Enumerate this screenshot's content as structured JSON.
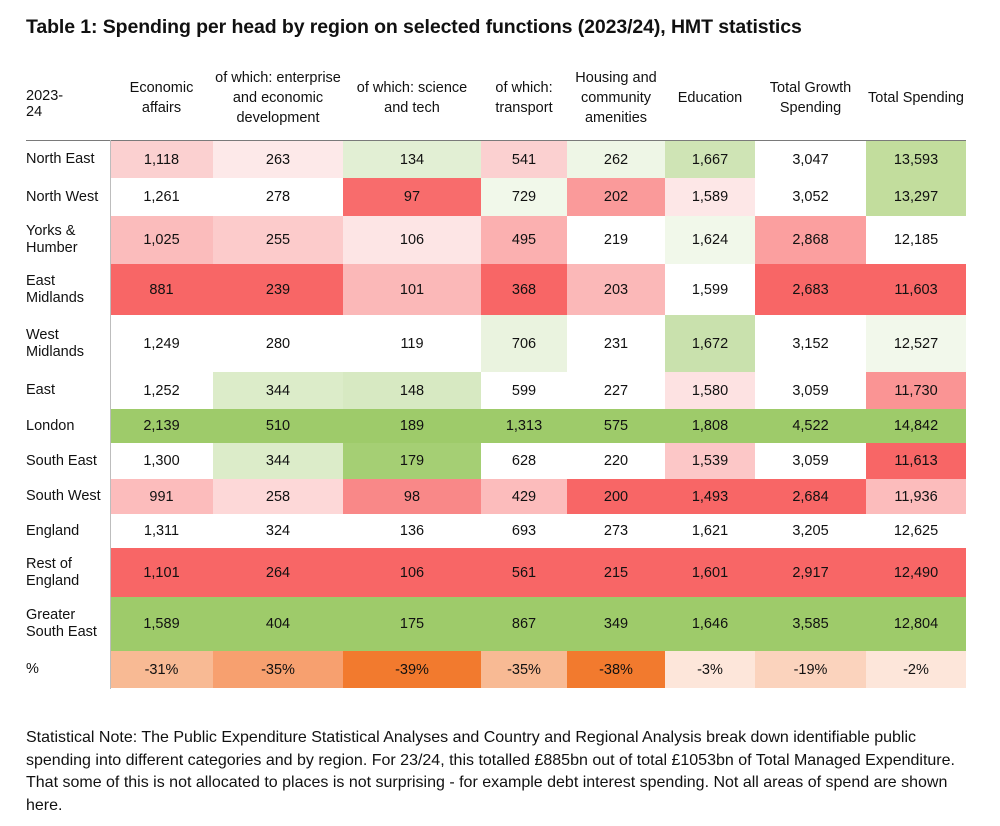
{
  "title": "Table 1: Spending per head by region on selected functions (2023/24), HMT statistics",
  "table": {
    "year_header": "2023-24",
    "columns": [
      "Economic affairs",
      "of which: enterprise and economic development",
      "of which: science and tech",
      "of which: transport",
      "Housing and community amenities",
      "Education",
      "Total Growth Spending",
      "Total Spending"
    ],
    "rows": [
      {
        "region": "North East",
        "values": [
          "1,118",
          "263",
          "134",
          "541",
          "262",
          "1,667",
          "3,047",
          "13,593"
        ],
        "colors": [
          "#fbd0d0",
          "#fde9e9",
          "#e2efd4",
          "#fbd0d0",
          "#eef6e6",
          "#cfe4b5",
          "#ffffff",
          "#c2dd9d"
        ]
      },
      {
        "region": "North West",
        "values": [
          "1,261",
          "278",
          "97",
          "729",
          "202",
          "1,589",
          "3,052",
          "13,297"
        ],
        "colors": [
          "#ffffff",
          "#ffffff",
          "#f86c6c",
          "#f1f8ea",
          "#fa9a9a",
          "#fde7e7",
          "#ffffff",
          "#c2dd9d"
        ]
      },
      {
        "region": "Yorks & Humber",
        "values": [
          "1,025",
          "255",
          "106",
          "495",
          "219",
          "1,624",
          "2,868",
          "12,185"
        ],
        "colors": [
          "#fbbcbc",
          "#fccbcb",
          "#fde5e5",
          "#fbb0b0",
          "#ffffff",
          "#f1f8ea",
          "#fb9f9f",
          "#ffffff"
        ]
      },
      {
        "region": "East Midlands",
        "values": [
          "881",
          "239",
          "101",
          "368",
          "203",
          "1,599",
          "2,683",
          "11,603"
        ],
        "colors": [
          "#f86666",
          "#f86666",
          "#fbb8b8",
          "#f86666",
          "#fbb8b8",
          "#ffffff",
          "#f86666",
          "#f86666"
        ]
      },
      {
        "region": "West Midlands",
        "values": [
          "1,249",
          "280",
          "119",
          "706",
          "231",
          "1,672",
          "3,152",
          "12,527"
        ],
        "colors": [
          "#ffffff",
          "#ffffff",
          "#ffffff",
          "#eaf3df",
          "#ffffff",
          "#c9e1ad",
          "#ffffff",
          "#f2f8eb"
        ]
      },
      {
        "region": "East",
        "values": [
          "1,252",
          "344",
          "148",
          "599",
          "227",
          "1,580",
          "3,059",
          "11,730"
        ],
        "colors": [
          "#ffffff",
          "#dcecc9",
          "#d7e9c2",
          "#ffffff",
          "#ffffff",
          "#fde2e2",
          "#ffffff",
          "#fa9494"
        ]
      },
      {
        "region": "London",
        "values": [
          "2,139",
          "510",
          "189",
          "1,313",
          "575",
          "1,808",
          "4,522",
          "14,842"
        ],
        "colors": [
          "#9ecb6a",
          "#9ecb6a",
          "#9ecb6a",
          "#9ecb6a",
          "#9ecb6a",
          "#9ecb6a",
          "#9ecb6a",
          "#9ecb6a"
        ]
      },
      {
        "region": "South East",
        "values": [
          "1,300",
          "344",
          "179",
          "628",
          "220",
          "1,539",
          "3,059",
          "11,613"
        ],
        "colors": [
          "#ffffff",
          "#dcecc9",
          "#a5cf74",
          "#ffffff",
          "#ffffff",
          "#fcc7c7",
          "#ffffff",
          "#f86666"
        ]
      },
      {
        "region": "South West",
        "values": [
          "991",
          "258",
          "98",
          "429",
          "200",
          "1,493",
          "2,684",
          "11,936"
        ],
        "colors": [
          "#fcbcbc",
          "#fdd8d8",
          "#f98888",
          "#fcbcbc",
          "#f86666",
          "#f86666",
          "#f86666",
          "#fcbcbc"
        ]
      },
      {
        "region": "England",
        "values": [
          "1,311",
          "324",
          "136",
          "693",
          "273",
          "1,621",
          "3,205",
          "12,625"
        ],
        "colors": [
          "#ffffff",
          "#ffffff",
          "#ffffff",
          "#ffffff",
          "#ffffff",
          "#ffffff",
          "#ffffff",
          "#ffffff"
        ]
      },
      {
        "region": "Rest of England",
        "values": [
          "1,101",
          "264",
          "106",
          "561",
          "215",
          "1,601",
          "2,917",
          "12,490"
        ],
        "colors": [
          "#f86666",
          "#f86666",
          "#f86666",
          "#f86666",
          "#f86666",
          "#f86666",
          "#f86666",
          "#f86666"
        ]
      },
      {
        "region": "Greater South East",
        "values": [
          "1,589",
          "404",
          "175",
          "867",
          "349",
          "1,646",
          "3,585",
          "12,804"
        ],
        "colors": [
          "#9ecb6a",
          "#9ecb6a",
          "#9ecb6a",
          "#9ecb6a",
          "#9ecb6a",
          "#9ecb6a",
          "#9ecb6a",
          "#9ecb6a"
        ]
      },
      {
        "region": "%",
        "values": [
          "-31%",
          "-35%",
          "-39%",
          "-35%",
          "-38%",
          "-3%",
          "-19%",
          "-2%"
        ],
        "colors": [
          "#f8ba94",
          "#f7a06f",
          "#f27a2e",
          "#f8ba94",
          "#f27a2e",
          "#fde6da",
          "#fbd3bd",
          "#fde6da"
        ]
      }
    ]
  },
  "note": "Statistical Note: The Public Expenditure Statistical Analyses and Country and Regional Analysis break down identifiable public spending into different categories and by region. For 23/24, this totalled £885bn out of total £1053bn of Total Managed Expenditure. That some of this is not allocated to places is not surprising - for example debt interest spending. Not all areas of spend are shown here."
}
